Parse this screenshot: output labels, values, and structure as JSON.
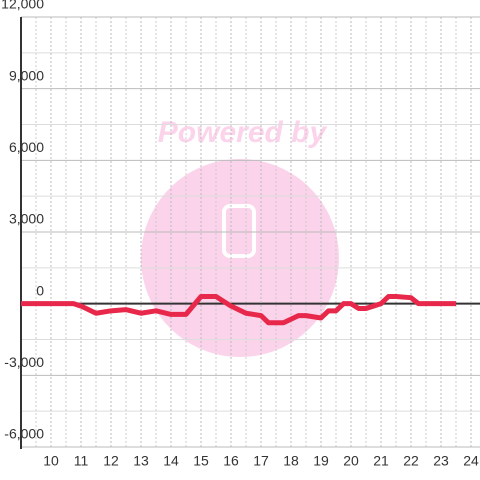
{
  "chart_data": {
    "type": "line",
    "watermark": "Powered by",
    "x": [
      9,
      10,
      10.75,
      11,
      11.5,
      12,
      12.5,
      13,
      13.5,
      14,
      14.5,
      15,
      15.5,
      16,
      16.5,
      17,
      17.25,
      17.75,
      18.25,
      18.5,
      19,
      19.25,
      19.5,
      19.75,
      20,
      20.25,
      20.5,
      20.75,
      21,
      21.25,
      21.5,
      22,
      22.25,
      23,
      23.5
    ],
    "series": [
      {
        "color": "#e8284a",
        "values": [
          0,
          0,
          0,
          -100,
          -400,
          -300,
          -250,
          -400,
          -300,
          -450,
          -450,
          300,
          300,
          -100,
          -400,
          -500,
          -800,
          -800,
          -500,
          -500,
          -600,
          -300,
          -300,
          0,
          0,
          -200,
          -200,
          -100,
          0,
          300,
          300,
          250,
          0,
          0,
          0
        ]
      }
    ],
    "xlim": [
      9,
      24.3
    ],
    "xticks": [
      10,
      11,
      12,
      13,
      14,
      15,
      16,
      17,
      18,
      19,
      20,
      21,
      22,
      23,
      24
    ],
    "ylim": [
      -6000,
      12000
    ],
    "yticks": [
      {
        "value": -6000,
        "label": "-6,000"
      },
      {
        "value": -3000,
        "label": "-3,000"
      },
      0,
      {
        "value": 3000,
        "label": "3,000"
      },
      {
        "value": 6000,
        "label": "6,000"
      },
      {
        "value": 9000,
        "label": "9,000"
      },
      {
        "value": 12000,
        "label": "12,000"
      }
    ],
    "grid": true
  }
}
